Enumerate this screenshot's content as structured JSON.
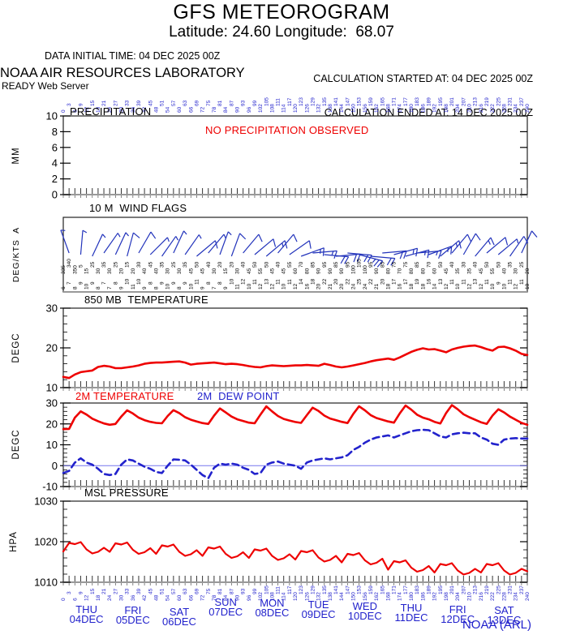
{
  "header": {
    "title": "GFS METEOROGRAM",
    "subtitle": "Latitude: 24.60 Longitude:  68.07",
    "data_initial_time": "DATA INITIAL TIME: 04 DEC 2025 00Z",
    "calc_started": "CALCULATION STARTED AT: 04 DEC 2025 00Z",
    "calc_ended": "CALCULATION ENDED AT: 14 DEC 2025 00Z",
    "org": "NOAA AIR RESOURCES LABORATORY",
    "server": "READY Web Server"
  },
  "footer": {
    "credit": "NOAA (ARL)"
  },
  "colors": {
    "red": "#ee0000",
    "blue": "#2222cc",
    "barb_blue": "#2233bb",
    "zero_line_blue": "#7777ee",
    "tick_dark": "#333333",
    "axis_gray": "#999999",
    "black": "#000000"
  },
  "x_axis": {
    "hours": [
      0,
      3,
      6,
      9,
      12,
      15,
      18,
      21,
      24,
      27,
      30,
      33,
      36,
      39,
      42,
      45,
      48,
      51,
      54,
      57,
      60,
      63,
      66,
      69,
      72,
      75,
      78,
      81,
      84,
      87,
      90,
      93,
      96,
      99,
      102,
      105,
      108,
      111,
      114,
      117,
      120,
      123,
      126,
      129,
      132,
      135,
      138,
      141,
      144,
      147,
      150,
      153,
      156,
      159,
      162,
      165,
      168,
      171,
      174,
      177,
      180,
      183,
      186,
      189,
      192,
      195,
      198,
      201,
      204,
      207,
      210,
      213,
      216,
      219,
      222,
      225,
      228,
      231,
      234,
      237,
      240
    ],
    "days": [
      {
        "name": "THU",
        "date": "04DEC"
      },
      {
        "name": "FRI",
        "date": "05DEC"
      },
      {
        "name": "SAT",
        "date": "06DEC"
      },
      {
        "name": "SUN",
        "date": "07DEC"
      },
      {
        "name": "MON",
        "date": "08DEC"
      },
      {
        "name": "TUE",
        "date": "09DEC"
      },
      {
        "name": "WED",
        "date": "10DEC"
      },
      {
        "name": "THU",
        "date": "11DEC"
      },
      {
        "name": "FRI",
        "date": "12DEC"
      },
      {
        "name": "SAT",
        "date": "13DEC"
      }
    ],
    "day_label_offsets": [
      9,
      10,
      12,
      0,
      1,
      3,
      5,
      7,
      9,
      10
    ]
  },
  "chart_data": [
    {
      "id": "precipitation",
      "type": "line",
      "title": "PRECIPITATION",
      "ylabel": "MM",
      "ylim": [
        0,
        10
      ],
      "yticks": [
        0,
        2,
        4,
        6,
        8,
        10
      ],
      "annotation": "NO PRECIPITATION OBSERVED",
      "series": []
    },
    {
      "id": "wind",
      "type": "wind-barbs",
      "title": "10 M  WIND FLAGS",
      "ylabel": "DEG/KTS  A",
      "dirs_deg": [
        335,
        340,
        350,
        5,
        15,
        25,
        30,
        35,
        30,
        25,
        20,
        15,
        20,
        30,
        40,
        45,
        40,
        35,
        30,
        25,
        30,
        35,
        45,
        50,
        45,
        40,
        30,
        20,
        15,
        20,
        30,
        40,
        45,
        50,
        55,
        50,
        45,
        40,
        45,
        55,
        60,
        70,
        80,
        85,
        90,
        95,
        90,
        85,
        90,
        95,
        100,
        105,
        100,
        95,
        90,
        85,
        80,
        75,
        70,
        75,
        80,
        85,
        80,
        70,
        60,
        50,
        45,
        40,
        35,
        30,
        35,
        40,
        45,
        50,
        55,
        50,
        40,
        35,
        30,
        25,
        20
      ],
      "speeds_kts": [
        6,
        7,
        8,
        9,
        10,
        9,
        8,
        7,
        7,
        8,
        9,
        10,
        11,
        10,
        9,
        8,
        8,
        9,
        10,
        9,
        8,
        9,
        10,
        11,
        9,
        8,
        7,
        8,
        9,
        10,
        11,
        12,
        10,
        11,
        12,
        13,
        12,
        11,
        10,
        11,
        12,
        14,
        16,
        18,
        20,
        22,
        21,
        20,
        20,
        22,
        24,
        25,
        24,
        22,
        21,
        20,
        18,
        17,
        16,
        17,
        18,
        19,
        18,
        16,
        14,
        13,
        12,
        11,
        10,
        11,
        12,
        13,
        12,
        11,
        10,
        9,
        10,
        11,
        12,
        11,
        10
      ]
    },
    {
      "id": "t850",
      "type": "line",
      "title": "850 MB  TEMPERATURE",
      "ylabel": "DEGC",
      "ylim": [
        10,
        30
      ],
      "yticks": [
        10,
        20,
        30
      ],
      "minor_step": 2,
      "series": [
        {
          "name": "850 MB TEMPERATURE",
          "color": "#ee0000",
          "dash": null,
          "values": [
            12.7,
            12.4,
            13.3,
            13.9,
            14.1,
            14.3,
            15.2,
            15.5,
            15.3,
            14.9,
            14.9,
            15.1,
            15.3,
            15.6,
            16.0,
            16.2,
            16.3,
            16.3,
            16.4,
            16.5,
            16.6,
            16.3,
            15.8,
            16.0,
            16.1,
            16.2,
            16.3,
            16.1,
            15.9,
            16.0,
            15.9,
            15.7,
            15.4,
            15.2,
            15.1,
            15.4,
            15.6,
            15.5,
            15.4,
            15.5,
            15.6,
            15.6,
            15.7,
            15.6,
            15.5,
            16.0,
            15.7,
            15.3,
            15.1,
            15.3,
            15.6,
            15.9,
            16.2,
            16.6,
            16.9,
            17.1,
            17.3,
            17.0,
            17.6,
            18.3,
            19.0,
            19.5,
            19.9,
            19.6,
            19.7,
            19.3,
            18.9,
            19.6,
            20.0,
            20.3,
            20.5,
            20.6,
            20.2,
            19.7,
            19.3,
            20.2,
            20.3,
            19.9,
            19.3,
            18.5,
            18.2
          ]
        }
      ]
    },
    {
      "id": "t2m",
      "type": "line",
      "title_temp": "2M TEMPERATURE",
      "title_dew": "2M  DEW POINT",
      "ylabel": "DEGC",
      "ylim": [
        -10,
        30
      ],
      "yticks": [
        -10,
        0,
        10,
        20,
        30
      ],
      "minor_step": 2,
      "zero_line": 0,
      "series": [
        {
          "name": "2M TEMPERATURE",
          "color": "#ee0000",
          "dash": null,
          "values": [
            17.5,
            17.6,
            23.0,
            26.0,
            24.5,
            22.5,
            21.3,
            20.2,
            19.6,
            20.0,
            23.5,
            26.5,
            25.0,
            23.0,
            21.8,
            21.0,
            20.5,
            20.3,
            23.8,
            26.6,
            25.2,
            23.2,
            22.0,
            21.2,
            20.4,
            20.0,
            24.0,
            27.4,
            25.5,
            23.5,
            22.2,
            21.4,
            20.6,
            20.3,
            24.5,
            28.4,
            26.0,
            23.8,
            22.4,
            21.6,
            20.9,
            20.5,
            24.2,
            27.8,
            26.2,
            24.0,
            22.6,
            21.8,
            21.0,
            20.4,
            24.8,
            28.4,
            26.5,
            24.2,
            22.8,
            22.0,
            21.2,
            20.6,
            25.0,
            28.8,
            26.8,
            24.4,
            23.0,
            22.2,
            21.0,
            20.2,
            25.2,
            29.0,
            27.0,
            24.6,
            23.2,
            22.0,
            20.8,
            20.0,
            24.0,
            27.0,
            25.5,
            23.5,
            22.0,
            20.5,
            19.6
          ]
        },
        {
          "name": "2M DEW POINT",
          "color": "#2222cc",
          "dash": "8,5",
          "values": [
            -3.5,
            -2.5,
            1.5,
            3.5,
            1.5,
            0.5,
            -1.5,
            -4.0,
            -4.5,
            -4.0,
            0.5,
            3.0,
            2.5,
            1.0,
            -0.5,
            -1.5,
            -3.0,
            -3.5,
            0.0,
            3.0,
            2.8,
            2.5,
            0.5,
            -2.0,
            -4.5,
            -6.0,
            -1.0,
            1.0,
            0.5,
            1.0,
            0.5,
            -1.0,
            -2.0,
            -4.0,
            -3.5,
            0.5,
            1.5,
            2.0,
            1.0,
            0.5,
            0.0,
            -1.5,
            1.5,
            2.5,
            3.0,
            3.5,
            3.0,
            3.5,
            4.0,
            5.0,
            7.5,
            9.0,
            11.0,
            12.5,
            13.5,
            14.0,
            14.5,
            13.5,
            14.5,
            15.5,
            16.5,
            17.0,
            17.2,
            17.0,
            15.5,
            14.0,
            13.5,
            15.0,
            15.5,
            15.8,
            15.5,
            15.5,
            13.5,
            12.5,
            10.5,
            10.0,
            12.5,
            13.0,
            13.2,
            13.0,
            13.0
          ]
        }
      ]
    },
    {
      "id": "mslp",
      "type": "line",
      "title": "MSL PRESSURE",
      "ylabel": "HPA",
      "ylim": [
        1010,
        1030
      ],
      "yticks": [
        1010,
        1020,
        1030
      ],
      "minor_step": 2,
      "series": [
        {
          "name": "MSL PRESSURE",
          "color": "#ee0000",
          "dash": null,
          "values": [
            1017.6,
            1019.7,
            1019.4,
            1019.9,
            1018.1,
            1017.1,
            1017.5,
            1018.5,
            1017.5,
            1019.6,
            1019.3,
            1019.8,
            1018.0,
            1017.0,
            1017.4,
            1018.4,
            1017.0,
            1019.1,
            1018.8,
            1019.3,
            1017.5,
            1016.5,
            1016.9,
            1017.9,
            1016.5,
            1018.6,
            1018.3,
            1018.8,
            1017.0,
            1016.0,
            1016.4,
            1017.4,
            1016.0,
            1018.1,
            1017.8,
            1018.3,
            1016.5,
            1015.5,
            1015.9,
            1016.9,
            1015.6,
            1017.7,
            1017.4,
            1017.9,
            1016.1,
            1015.1,
            1015.5,
            1016.5,
            1014.9,
            1017.0,
            1016.7,
            1017.2,
            1015.4,
            1014.4,
            1014.8,
            1015.8,
            1013.1,
            1015.2,
            1014.9,
            1015.4,
            1013.6,
            1012.6,
            1013.0,
            1014.0,
            1012.4,
            1014.5,
            1014.2,
            1014.7,
            1012.9,
            1011.9,
            1012.3,
            1013.3,
            1012.4,
            1014.5,
            1014.2,
            1014.7,
            1012.9,
            1011.9,
            1012.3,
            1013.3,
            1012.7
          ]
        }
      ]
    }
  ]
}
